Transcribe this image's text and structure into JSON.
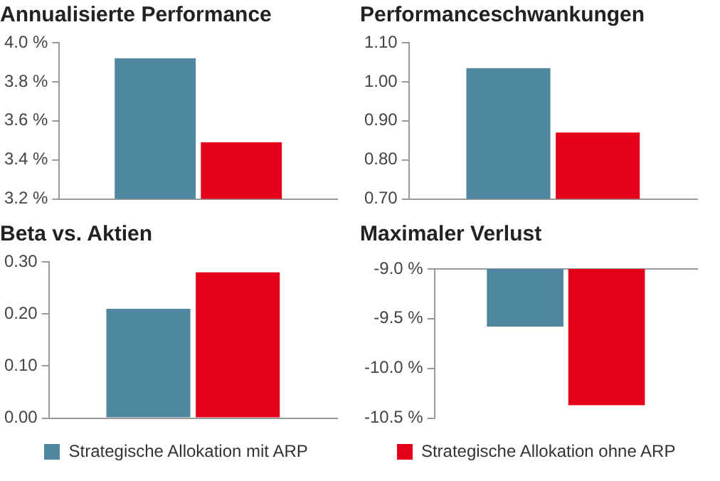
{
  "chart_data": [
    {
      "type": "bar",
      "title": "Annualisierte Performance",
      "categories": [
        null
      ],
      "series": [
        {
          "color": "#4f86a0",
          "values": [
            3.92
          ]
        },
        {
          "color": "#e2001a",
          "values": [
            3.49
          ]
        }
      ],
      "ylim": [
        3.2,
        4.0
      ],
      "yticks": [
        {
          "value": 3.2,
          "label": "3.2 %"
        },
        {
          "value": 3.4,
          "label": "3.4 %"
        },
        {
          "value": 3.6,
          "label": "3.6 %"
        },
        {
          "value": 3.8,
          "label": "3.8 %"
        },
        {
          "value": 4.0,
          "label": "4.0 %"
        }
      ],
      "grid": false,
      "tick_labels": "y",
      "legend": false
    },
    {
      "type": "bar",
      "title": "Performanceschwankungen",
      "categories": [
        null
      ],
      "series": [
        {
          "color": "#4f86a0",
          "values": [
            1.035
          ]
        },
        {
          "color": "#e2001a",
          "values": [
            0.87
          ]
        }
      ],
      "ylim": [
        0.7,
        1.1
      ],
      "yticks": [
        {
          "value": 0.7,
          "label": "0.70"
        },
        {
          "value": 0.8,
          "label": "0.80"
        },
        {
          "value": 0.9,
          "label": "0.90"
        },
        {
          "value": 1.0,
          "label": "1.00"
        },
        {
          "value": 1.1,
          "label": "1.10"
        }
      ],
      "grid": false,
      "tick_labels": "y",
      "legend": false
    },
    {
      "type": "bar",
      "title": "Beta vs. Aktien",
      "categories": [
        null
      ],
      "series": [
        {
          "color": "#4f86a0",
          "values": [
            0.21
          ]
        },
        {
          "color": "#e2001a",
          "values": [
            0.28
          ]
        }
      ],
      "ylim": [
        0,
        0.3
      ],
      "yticks": [
        {
          "value": 0,
          "label": "0.00"
        },
        {
          "value": 0.1,
          "label": "0.10"
        },
        {
          "value": 0.2,
          "label": "0.20"
        },
        {
          "value": 0.3,
          "label": "0.30"
        }
      ],
      "grid": false,
      "tick_labels": "y",
      "legend": false
    },
    {
      "type": "bar",
      "title": "Maximaler Verlust",
      "categories": [
        null
      ],
      "series": [
        {
          "name": "Strategische Allokation mit ARP",
          "color": "#4f86a0",
          "values": [
            -9.58
          ]
        },
        {
          "name": "Strategische Allokation ohne ARP",
          "color": "#e2001a",
          "values": [
            -10.37
          ]
        }
      ],
      "ylim": [
        -10.5,
        -9.0
      ],
      "yticks": [
        {
          "value": -10.5,
          "label": "-10.5 %"
        },
        {
          "value": -10.0,
          "label": "-10.0 %"
        },
        {
          "value": -9.5,
          "label": "-9.5 %"
        },
        {
          "value": -9.0,
          "label": "-9.0 %"
        }
      ],
      "grid": false,
      "tick_labels": "y",
      "legend": "bottom"
    }
  ]
}
